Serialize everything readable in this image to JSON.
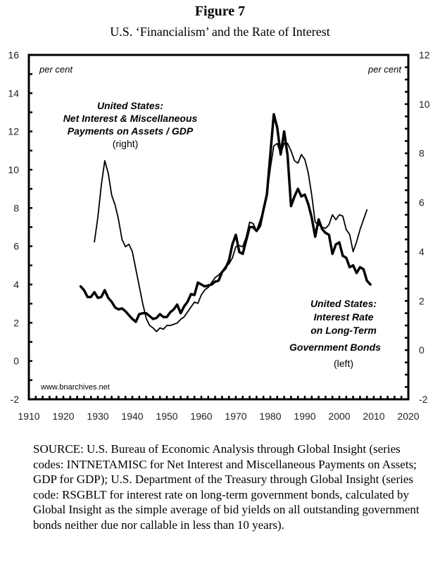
{
  "figure": {
    "number_label": "Figure 7",
    "title": "U.S. ‘Financialism’ and the Rate of Interest",
    "source_note": "SOURCE: U.S. Bureau of Economic Analysis through Global Insight (series codes: INTNETAMISC for Net Interest and Miscellaneous Payments on Assets; GDP for GDP); U.S. Department of the Treasury through Global Insight (series code: RSGBLT for interest rate on long-term government bonds, calculated by Global Insight as the simple average of bid yields on all outstanding government bonds neither due nor callable in less than 10 years).",
    "watermark": "www.bnarchives.net"
  },
  "chart_data": {
    "type": "line",
    "title": "U.S. ‘Financialism’ and the Rate of Interest",
    "xlabel": "",
    "ylabel_left": "per cent",
    "ylabel_right": "per cent",
    "xlim": [
      1910,
      2020
    ],
    "ylim_left": [
      -2,
      16
    ],
    "ylim_right": [
      -2,
      12
    ],
    "x_ticks": [
      1910,
      1920,
      1930,
      1940,
      1950,
      1960,
      1970,
      1980,
      1990,
      2000,
      2010,
      2020
    ],
    "y_ticks_left": [
      -2,
      0,
      2,
      4,
      6,
      8,
      10,
      12,
      14,
      16
    ],
    "y_ticks_right": [
      -2,
      0,
      2,
      4,
      6,
      8,
      10,
      12
    ],
    "grid": false,
    "legend": "none (inline annotations)",
    "annotations": [
      {
        "series": "net_interest",
        "lines": [
          "United States:",
          "Net Interest & Miscellaneous",
          "Payments on Assets / GDP"
        ],
        "axis_note": "(right)",
        "placement": "top-left"
      },
      {
        "series": "bond_rate",
        "lines": [
          "United States:",
          "Interest Rate",
          "on Long-Term",
          "Government Bonds"
        ],
        "axis_note": "(left)",
        "placement": "bottom-right"
      }
    ],
    "series": [
      {
        "id": "bond_rate",
        "name": "United States: Interest Rate on Long-Term Government Bonds",
        "axis": "left",
        "style": "thick",
        "x": [
          1925,
          1926,
          1927,
          1928,
          1929,
          1930,
          1931,
          1932,
          1933,
          1934,
          1935,
          1936,
          1937,
          1938,
          1939,
          1940,
          1941,
          1942,
          1943,
          1944,
          1945,
          1946,
          1947,
          1948,
          1949,
          1950,
          1951,
          1952,
          1953,
          1954,
          1955,
          1956,
          1957,
          1958,
          1959,
          1960,
          1961,
          1962,
          1963,
          1964,
          1965,
          1966,
          1967,
          1968,
          1969,
          1970,
          1971,
          1972,
          1973,
          1974,
          1975,
          1976,
          1977,
          1978,
          1979,
          1980,
          1981,
          1982,
          1983,
          1984,
          1985,
          1986,
          1987,
          1988,
          1989,
          1990,
          1991,
          1992,
          1993,
          1994,
          1995,
          1996,
          1997,
          1998,
          1999,
          2000,
          2001,
          2002,
          2003,
          2004,
          2005,
          2006,
          2007,
          2008,
          2009
        ],
        "values": [
          3.9,
          3.7,
          3.35,
          3.35,
          3.6,
          3.3,
          3.35,
          3.7,
          3.3,
          3.1,
          2.8,
          2.7,
          2.75,
          2.6,
          2.4,
          2.2,
          2.05,
          2.45,
          2.5,
          2.5,
          2.35,
          2.2,
          2.25,
          2.45,
          2.3,
          2.3,
          2.55,
          2.7,
          2.95,
          2.5,
          2.85,
          3.1,
          3.5,
          3.45,
          4.1,
          4.0,
          3.9,
          3.95,
          4.0,
          4.15,
          4.2,
          4.65,
          4.85,
          5.25,
          6.1,
          6.6,
          5.7,
          5.6,
          6.3,
          7.0,
          7.0,
          6.8,
          7.05,
          7.9,
          8.7,
          10.8,
          12.9,
          12.2,
          10.8,
          12.0,
          10.75,
          8.1,
          8.6,
          9.0,
          8.6,
          8.7,
          8.2,
          7.5,
          6.5,
          7.4,
          6.9,
          6.7,
          6.6,
          5.6,
          6.1,
          6.2,
          5.5,
          5.4,
          4.9,
          5.0,
          4.6,
          4.9,
          4.8,
          4.2,
          4.0
        ]
      },
      {
        "id": "net_interest",
        "name": "United States: Net Interest & Miscellaneous Payments on Assets / GDP",
        "axis": "right",
        "style": "thin",
        "x": [
          1929,
          1930,
          1931,
          1932,
          1933,
          1934,
          1935,
          1936,
          1937,
          1938,
          1939,
          1940,
          1941,
          1942,
          1943,
          1944,
          1945,
          1946,
          1947,
          1948,
          1949,
          1950,
          1951,
          1952,
          1953,
          1954,
          1955,
          1956,
          1957,
          1958,
          1959,
          1960,
          1961,
          1962,
          1963,
          1964,
          1965,
          1966,
          1967,
          1968,
          1969,
          1970,
          1971,
          1972,
          1973,
          1974,
          1975,
          1976,
          1977,
          1978,
          1979,
          1980,
          1981,
          1982,
          1983,
          1984,
          1985,
          1986,
          1987,
          1988,
          1989,
          1990,
          1991,
          1992,
          1993,
          1994,
          1995,
          1996,
          1997,
          1998,
          1999,
          2000,
          2001,
          2002,
          2003,
          2004,
          2005,
          2006,
          2007,
          2008
        ],
        "values": [
          4.4,
          5.4,
          6.7,
          7.7,
          7.2,
          6.3,
          5.9,
          5.3,
          4.5,
          4.2,
          4.3,
          4.0,
          3.3,
          2.6,
          1.9,
          1.3,
          1.0,
          0.9,
          0.75,
          0.9,
          0.85,
          1.0,
          1.0,
          1.05,
          1.1,
          1.25,
          1.35,
          1.55,
          1.75,
          1.95,
          1.9,
          2.25,
          2.45,
          2.55,
          2.75,
          2.95,
          3.05,
          3.2,
          3.4,
          3.5,
          3.75,
          4.2,
          4.25,
          4.2,
          4.6,
          5.2,
          5.15,
          4.85,
          5.25,
          5.7,
          6.3,
          7.4,
          8.3,
          8.4,
          8.0,
          8.4,
          8.4,
          8.1,
          7.7,
          7.6,
          7.95,
          7.75,
          7.2,
          6.3,
          5.2,
          5.1,
          5.0,
          4.95,
          5.1,
          5.5,
          5.3,
          5.5,
          5.45,
          4.9,
          4.7,
          4.0,
          4.4,
          4.9,
          5.3,
          5.7
        ]
      }
    ]
  }
}
